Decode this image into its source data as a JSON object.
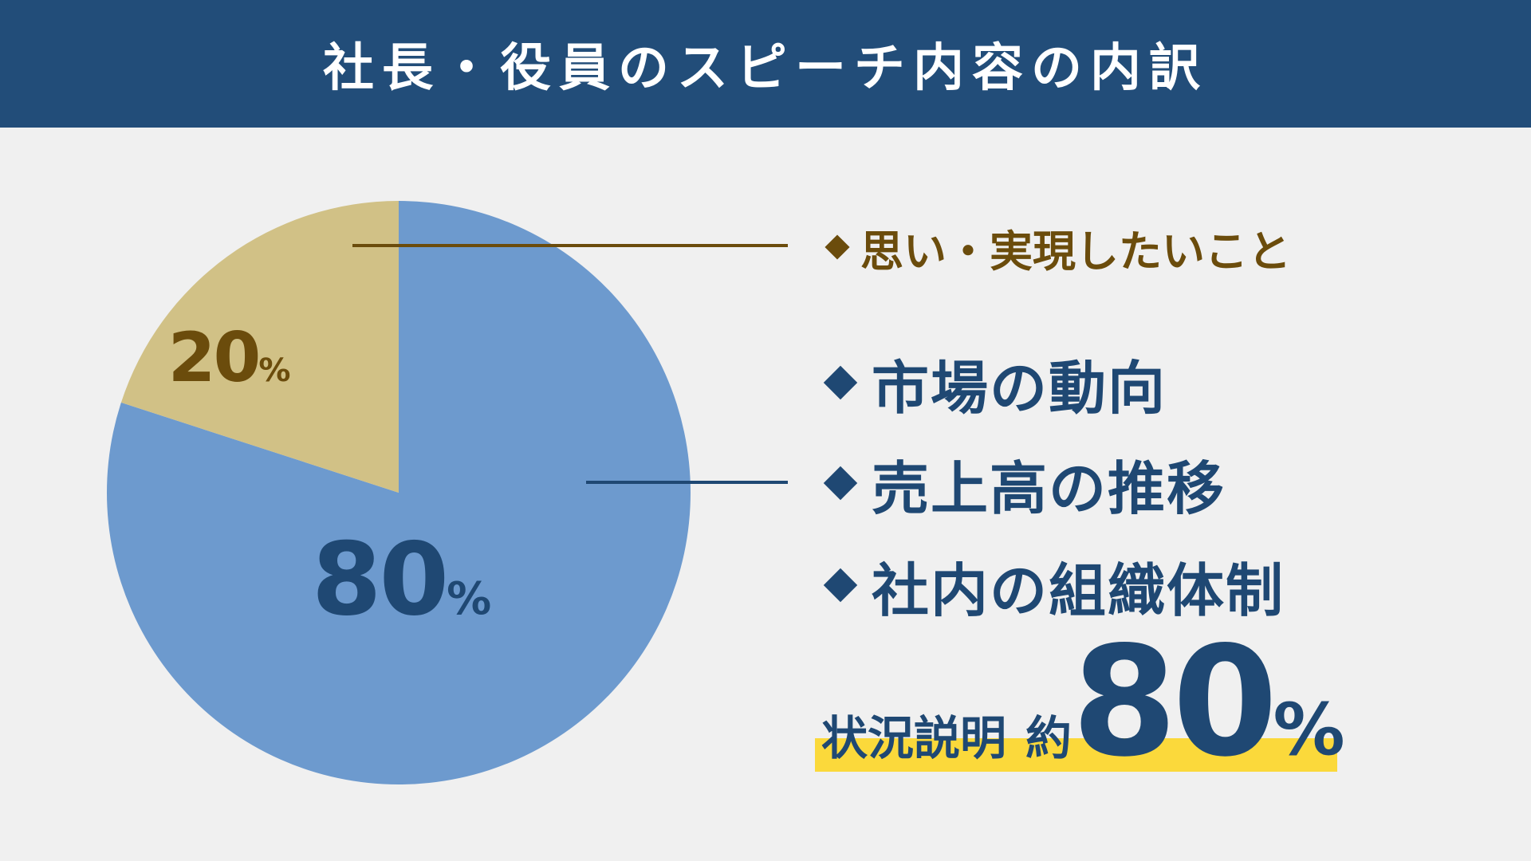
{
  "header": {
    "title": "社長・役員のスピーチ内容の内訳"
  },
  "chart_data": {
    "type": "pie",
    "start": "12 o'clock, clockwise",
    "slices": [
      {
        "value": 80,
        "label": "80%",
        "color": "#6d9ace",
        "label_color": "#1f4873"
      },
      {
        "value": 20,
        "label": "20%",
        "color": "#d1c186",
        "label_color": "#6b4c0c"
      }
    ],
    "leader_line_colors": [
      "#1f4873",
      "#6b4c0c"
    ]
  },
  "legend": {
    "minor": "思い・実現したいこと",
    "major": [
      "市場の動向",
      "売上高の推移",
      "社内の組織体制"
    ]
  },
  "summary": {
    "label": "状況説明",
    "prefix": "約",
    "value": "80",
    "unit": "%",
    "highlight_color": "#fbd93b"
  }
}
